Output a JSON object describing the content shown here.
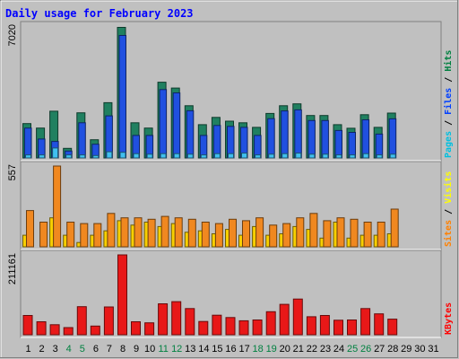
{
  "chart_data": {
    "type": "bar",
    "title": "Daily usage for February 2023",
    "x": [
      "1",
      "2",
      "3",
      "4",
      "5",
      "6",
      "7",
      "8",
      "9",
      "10",
      "11",
      "12",
      "13",
      "14",
      "15",
      "16",
      "17",
      "18",
      "19",
      "20",
      "21",
      "22",
      "23",
      "24",
      "25",
      "26",
      "27",
      "28",
      "29",
      "30",
      "31"
    ],
    "weekend_days": [
      "4",
      "5",
      "11",
      "12",
      "18",
      "19",
      "25",
      "26"
    ],
    "panels": [
      {
        "name": "hits-files-pages",
        "ymax_label": "7020",
        "ylim": [
          0,
          7020
        ],
        "legend": [
          {
            "text": "Pages",
            "color": "#00c0e0"
          },
          {
            "text": "Files",
            "color": "#0040ff"
          },
          {
            "text": "Hits",
            "color": "#008040"
          }
        ],
        "series": [
          {
            "name": "Hits",
            "color": "#208060",
            "values": [
              1830,
              1590,
              2490,
              510,
              2400,
              970,
              2940,
              6950,
              1870,
              1590,
              4030,
              3720,
              2780,
              1770,
              2160,
              1960,
              1870,
              1630,
              2370,
              2780,
              2880,
              2260,
              2260,
              1770,
              1580,
              2300,
              1630,
              2390,
              0,
              0,
              0
            ]
          },
          {
            "name": "Files",
            "color": "#2050e0",
            "values": [
              1590,
              1010,
              880,
              370,
              1870,
              730,
              2240,
              6520,
              1200,
              1200,
              3640,
              3460,
              2510,
              1200,
              1730,
              1680,
              1630,
              1200,
              2090,
              2500,
              2560,
              1990,
              1990,
              1460,
              1360,
              2030,
              1270,
              2080,
              0,
              0,
              0
            ]
          },
          {
            "name": "Pages",
            "color": "#40c0f0",
            "values": [
              160,
              160,
              530,
              160,
              160,
              130,
              330,
              300,
              230,
              200,
              230,
              230,
              200,
              160,
              230,
              230,
              260,
              160,
              200,
              230,
              260,
              200,
              200,
              160,
              160,
              230,
              160,
              200,
              0,
              0,
              0
            ]
          }
        ]
      },
      {
        "name": "sites-visits",
        "ymax_label": "557",
        "ylim": [
          0,
          557
        ],
        "legend": [
          {
            "text": "Sites",
            "color": "#ff8000"
          },
          {
            "text": "Visits",
            "color": "#ffff00"
          }
        ],
        "series": [
          {
            "name": "Visits",
            "color": "#f8d000",
            "values": [
              80,
              0,
              200,
              80,
              30,
              80,
              110,
              180,
              150,
              170,
              140,
              160,
              100,
              110,
              90,
              120,
              80,
              140,
              80,
              90,
              140,
              120,
              60,
              170,
              60,
              80,
              80,
              90,
              0,
              0,
              0
            ]
          },
          {
            "name": "Sites",
            "color": "#f08820",
            "values": [
              250,
              170,
              557,
              170,
              160,
              160,
              230,
              200,
              200,
              190,
              210,
              200,
              190,
              170,
              160,
              190,
              180,
              200,
              150,
              160,
              200,
              230,
              180,
              200,
              190,
              170,
              170,
              260,
              0,
              0,
              0
            ]
          }
        ]
      },
      {
        "name": "kbytes",
        "ymax_label": "211161",
        "ylim": [
          0,
          211161
        ],
        "legend": [
          {
            "text": "KBytes",
            "color": "#ff0000"
          }
        ],
        "series": [
          {
            "name": "KBytes",
            "color": "#e81818",
            "values": [
              51100,
              34300,
              26600,
              18900,
              74200,
              23100,
              73500,
              211161,
              34300,
              31500,
              81900,
              87500,
              69300,
              35000,
              51800,
              45500,
              37100,
              39200,
              60900,
              80500,
              94500,
              47600,
              51100,
              38500,
              39200,
              69300,
              55300,
              41300,
              0,
              0,
              0
            ]
          }
        ]
      }
    ]
  }
}
